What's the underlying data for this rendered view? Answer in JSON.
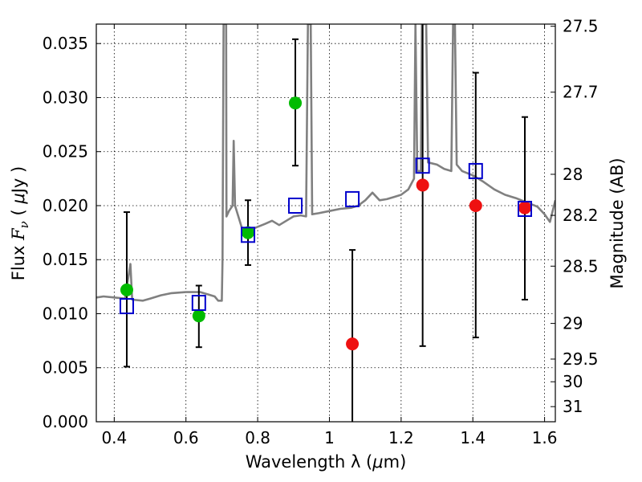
{
  "chart_data": {
    "type": "scatter",
    "xlabel_parts": [
      "Wavelength  λ (",
      "μ",
      "m)"
    ],
    "ylabel_parts": [
      "Flux  ",
      "F",
      "ν",
      "  ( ",
      "μ",
      "Jy )"
    ],
    "y2label": "Magnitude (AB)",
    "xlim": [
      0.35,
      1.63
    ],
    "ylim": [
      0.0,
      0.0368
    ],
    "grid": true,
    "x_ticks": [
      {
        "value": 0.4,
        "label": "0.4"
      },
      {
        "value": 0.6,
        "label": "0.6"
      },
      {
        "value": 0.8,
        "label": "0.8"
      },
      {
        "value": 1.0,
        "label": "1"
      },
      {
        "value": 1.2,
        "label": "1.2"
      },
      {
        "value": 1.4,
        "label": "1.4"
      },
      {
        "value": 1.6,
        "label": "1.6"
      }
    ],
    "y_ticks": [
      {
        "value": 0.0,
        "label": "0.000"
      },
      {
        "value": 0.005,
        "label": "0.005"
      },
      {
        "value": 0.01,
        "label": "0.010"
      },
      {
        "value": 0.015,
        "label": "0.015"
      },
      {
        "value": 0.02,
        "label": "0.020"
      },
      {
        "value": 0.025,
        "label": "0.025"
      },
      {
        "value": 0.03,
        "label": "0.030"
      },
      {
        "value": 0.035,
        "label": "0.035"
      }
    ],
    "magnitude_ticks": [
      {
        "value": 0.0366,
        "label": "27.5"
      },
      {
        "value": 0.0305,
        "label": "27.7"
      },
      {
        "value": 0.0229,
        "label": "28"
      },
      {
        "value": 0.0191,
        "label": "28.2"
      },
      {
        "value": 0.0144,
        "label": "28.5"
      },
      {
        "value": 0.0091,
        "label": "29"
      },
      {
        "value": 0.0058,
        "label": "29.5"
      },
      {
        "value": 0.0037,
        "label": "30"
      },
      {
        "value": 0.0014,
        "label": "31"
      }
    ],
    "error_bars": [
      {
        "x": 0.435,
        "low": 0.0051,
        "high": 0.0194
      },
      {
        "x": 0.636,
        "low": 0.0069,
        "high": 0.0126
      },
      {
        "x": 0.773,
        "low": 0.0145,
        "high": 0.0205
      },
      {
        "x": 0.905,
        "low": 0.0237,
        "high": 0.0354
      },
      {
        "x": 1.064,
        "low": 0.0,
        "high": 0.0159
      },
      {
        "x": 1.26,
        "low": 0.007,
        "high": 0.0368
      },
      {
        "x": 1.408,
        "low": 0.0078,
        "high": 0.0323
      },
      {
        "x": 1.545,
        "low": 0.0113,
        "high": 0.0282
      }
    ],
    "series": [
      {
        "color": "#00bb00",
        "marker": "circle",
        "points": [
          [
            0.435,
            0.0122
          ],
          [
            0.636,
            0.0098
          ],
          [
            0.773,
            0.0175
          ],
          [
            0.905,
            0.0295
          ]
        ]
      },
      {
        "color": "#ee1111",
        "marker": "circle",
        "points": [
          [
            1.064,
            0.0072
          ],
          [
            1.26,
            0.0219
          ],
          [
            1.408,
            0.02
          ],
          [
            1.545,
            0.0198
          ]
        ]
      },
      {
        "color": "#0000cc",
        "marker": "open-square",
        "points": [
          [
            0.435,
            0.0107
          ],
          [
            0.636,
            0.011
          ],
          [
            0.773,
            0.0173
          ],
          [
            0.905,
            0.02
          ],
          [
            1.064,
            0.0206
          ],
          [
            1.26,
            0.0237
          ],
          [
            1.408,
            0.0232
          ],
          [
            1.545,
            0.0197
          ]
        ]
      }
    ],
    "model_spectrum": {
      "color": "#808080",
      "points": [
        [
          0.35,
          0.0115
        ],
        [
          0.37,
          0.0116
        ],
        [
          0.4,
          0.0115
        ],
        [
          0.43,
          0.0114
        ],
        [
          0.445,
          0.0146
        ],
        [
          0.45,
          0.0113
        ],
        [
          0.48,
          0.0112
        ],
        [
          0.5,
          0.0114
        ],
        [
          0.53,
          0.0117
        ],
        [
          0.56,
          0.0119
        ],
        [
          0.6,
          0.012
        ],
        [
          0.64,
          0.012
        ],
        [
          0.66,
          0.0118
        ],
        [
          0.68,
          0.0116
        ],
        [
          0.69,
          0.0112
        ],
        [
          0.7,
          0.0112
        ],
        [
          0.702,
          0.015
        ],
        [
          0.705,
          0.0368
        ],
        [
          0.712,
          0.0368
        ],
        [
          0.713,
          0.019
        ],
        [
          0.72,
          0.0195
        ],
        [
          0.73,
          0.02
        ],
        [
          0.733,
          0.026
        ],
        [
          0.737,
          0.02
        ],
        [
          0.76,
          0.0175
        ],
        [
          0.79,
          0.0179
        ],
        [
          0.82,
          0.0183
        ],
        [
          0.84,
          0.0186
        ],
        [
          0.86,
          0.0182
        ],
        [
          0.88,
          0.0186
        ],
        [
          0.9,
          0.019
        ],
        [
          0.92,
          0.0191
        ],
        [
          0.935,
          0.019
        ],
        [
          0.94,
          0.0368
        ],
        [
          0.948,
          0.0368
        ],
        [
          0.952,
          0.0192
        ],
        [
          0.97,
          0.0193
        ],
        [
          1.0,
          0.0195
        ],
        [
          1.03,
          0.0197
        ],
        [
          1.06,
          0.0198
        ],
        [
          1.08,
          0.02
        ],
        [
          1.1,
          0.0205
        ],
        [
          1.12,
          0.0212
        ],
        [
          1.14,
          0.0205
        ],
        [
          1.16,
          0.0206
        ],
        [
          1.18,
          0.0208
        ],
        [
          1.2,
          0.021
        ],
        [
          1.22,
          0.0215
        ],
        [
          1.236,
          0.0225
        ],
        [
          1.24,
          0.0368
        ],
        [
          1.245,
          0.0232
        ],
        [
          1.255,
          0.0232
        ],
        [
          1.258,
          0.0368
        ],
        [
          1.27,
          0.0368
        ],
        [
          1.275,
          0.024
        ],
        [
          1.3,
          0.0238
        ],
        [
          1.32,
          0.0234
        ],
        [
          1.34,
          0.0232
        ],
        [
          1.345,
          0.0368
        ],
        [
          1.35,
          0.0368
        ],
        [
          1.355,
          0.0238
        ],
        [
          1.37,
          0.0232
        ],
        [
          1.4,
          0.0228
        ],
        [
          1.43,
          0.0222
        ],
        [
          1.46,
          0.0215
        ],
        [
          1.49,
          0.021
        ],
        [
          1.52,
          0.0207
        ],
        [
          1.55,
          0.0203
        ],
        [
          1.58,
          0.0199
        ],
        [
          1.6,
          0.0192
        ],
        [
          1.615,
          0.0185
        ],
        [
          1.63,
          0.0205
        ]
      ]
    }
  }
}
